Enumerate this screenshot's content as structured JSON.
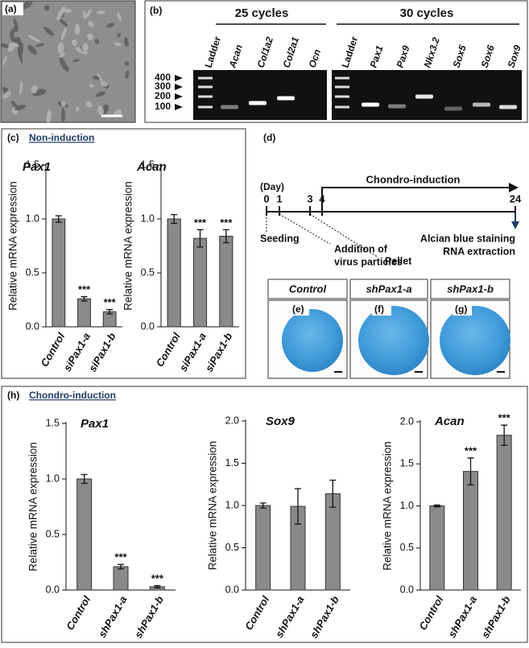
{
  "panels": {
    "a": {
      "label": "(a)"
    },
    "b": {
      "label": "(b)",
      "groups": [
        "25 cycles",
        "30 cycles"
      ],
      "lanes_25": [
        "Ladder",
        "Acan",
        "Col1a2",
        "Col2a1",
        "Ocn"
      ],
      "lanes_30": [
        "Ladder",
        "Pax1",
        "Pax9",
        "Nkx3.2",
        "Sox5",
        "Sox6",
        "Sox9"
      ],
      "ladder_sizes": [
        400,
        300,
        200,
        100
      ]
    },
    "c": {
      "label": "(c)",
      "heading": "Non-induction"
    },
    "d": {
      "label": "(d)",
      "unit": "(Day)",
      "phase": "Chondro-induction",
      "days": [
        0,
        1,
        3,
        4,
        24
      ],
      "events": [
        [
          "Seeding"
        ],
        [
          "Addition of",
          "virus particles"
        ],
        [
          "Pellet"
        ],
        [
          "Alcian blue staining",
          "RNA extraction"
        ]
      ]
    },
    "e_g": {
      "labels": [
        "(e)",
        "(f)",
        "(g)"
      ],
      "headers": [
        "Control",
        "shPax1-a",
        "shPax1-b"
      ]
    },
    "h": {
      "label": "(h)",
      "heading": "Chondro-induction"
    }
  },
  "chart_data": [
    {
      "type": "bar",
      "title": "Pax1",
      "y_label": "Relative mRNA expression",
      "color": "#8a8a8a",
      "categories": [
        "Control",
        "siPax1-a",
        "siPax1-b"
      ],
      "values": [
        1.0,
        0.26,
        0.14
      ],
      "errors": [
        0.03,
        0.02,
        0.02
      ],
      "significance": [
        null,
        "***",
        "***"
      ],
      "ylim": [
        0,
        1.5
      ],
      "yticks": [
        {
          "value": 0,
          "label": "0.0"
        },
        0.5,
        {
          "value": 1,
          "label": "1.0"
        },
        1.5
      ]
    },
    {
      "type": "bar",
      "title": "Acan",
      "y_label": "Relative mRNA expression",
      "color": "#8a8a8a",
      "categories": [
        "Control",
        "siPax1-a",
        "siPax1-b"
      ],
      "values": [
        1.0,
        0.82,
        0.84
      ],
      "errors": [
        0.04,
        0.08,
        0.06
      ],
      "significance": [
        null,
        "***",
        "***"
      ],
      "ylim": [
        0,
        1.5
      ],
      "yticks": [
        {
          "value": 0,
          "label": "0.0"
        },
        0.5,
        {
          "value": 1,
          "label": "1.0"
        },
        1.5
      ]
    },
    {
      "type": "bar",
      "title": "Pax1",
      "y_label": "Relative mRNA expression",
      "color": "#8a8a8a",
      "categories": [
        "Control",
        "shPax1-a",
        "shPax1-b"
      ],
      "values": [
        1.0,
        0.21,
        0.03
      ],
      "errors": [
        0.04,
        0.02,
        0.01
      ],
      "significance": [
        null,
        "***",
        "***"
      ],
      "ylim": [
        0,
        1.5
      ],
      "yticks": [
        {
          "value": 0,
          "label": "0.0"
        },
        0.5,
        {
          "value": 1,
          "label": "1.0"
        },
        1.5
      ]
    },
    {
      "type": "bar",
      "title": "Sox9",
      "y_label": "Relative mRNA expression",
      "color": "#8a8a8a",
      "categories": [
        "Control",
        "shPax1-a",
        "shPax1-b"
      ],
      "values": [
        1.0,
        0.99,
        1.14
      ],
      "errors": [
        0.03,
        0.21,
        0.16
      ],
      "significance": [
        null,
        null,
        null
      ],
      "ylim": [
        0,
        2
      ],
      "yticks": [
        {
          "value": 0,
          "label": "0.0"
        },
        0.5,
        {
          "value": 1,
          "label": "1.0"
        },
        1.5,
        {
          "value": 2,
          "label": "2.0"
        }
      ]
    },
    {
      "type": "bar",
      "title": "Acan",
      "y_label": "Relative mRNA expression",
      "color": "#8a8a8a",
      "categories": [
        "Control",
        "shPax1-a",
        "shPax1-b"
      ],
      "values": [
        1.0,
        1.41,
        1.84
      ],
      "errors": [
        0.01,
        0.16,
        0.12
      ],
      "significance": [
        null,
        "***",
        "***"
      ],
      "ylim": [
        0,
        2
      ],
      "yticks": [
        {
          "value": 0,
          "label": "0.0"
        },
        0.5,
        {
          "value": 1,
          "label": "1.0"
        },
        1.5,
        {
          "value": 2,
          "label": "2.0"
        }
      ]
    }
  ]
}
